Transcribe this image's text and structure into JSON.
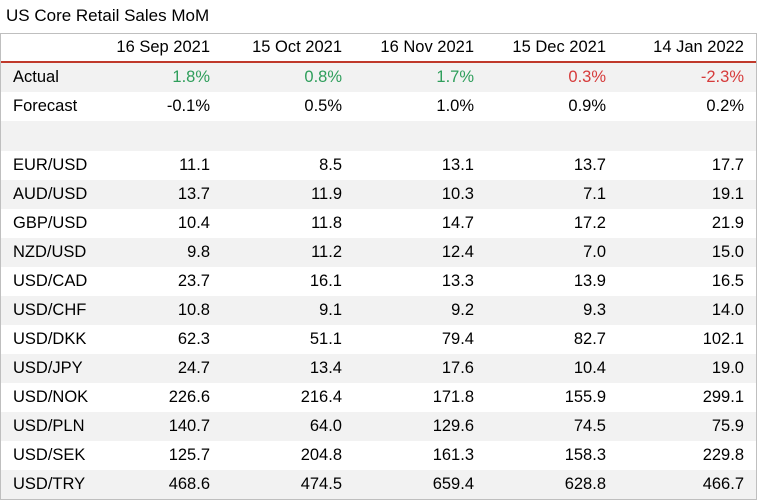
{
  "title": "US Core Retail Sales MoM",
  "colors": {
    "positive": "#2e9e5b",
    "negative": "#d63b3b",
    "header_rule": "#c0392b",
    "shade": "#f2f2f2"
  },
  "header": [
    "16 Sep 2021",
    "15 Oct 2021",
    "16 Nov 2021",
    "15 Dec 2021",
    "14 Jan 2022"
  ],
  "actual": {
    "label": "Actual",
    "values": [
      "1.8%",
      "0.8%",
      "1.7%",
      "0.3%",
      "-2.3%"
    ]
  },
  "forecast": {
    "label": "Forecast",
    "values": [
      "-0.1%",
      "0.5%",
      "1.0%",
      "0.9%",
      "0.2%"
    ]
  },
  "pairs": [
    {
      "label": "EUR/USD",
      "values": [
        "11.1",
        "8.5",
        "13.1",
        "13.7",
        "17.7"
      ]
    },
    {
      "label": "AUD/USD",
      "values": [
        "13.7",
        "11.9",
        "10.3",
        "7.1",
        "19.1"
      ]
    },
    {
      "label": "GBP/USD",
      "values": [
        "10.4",
        "11.8",
        "14.7",
        "17.2",
        "21.9"
      ]
    },
    {
      "label": "NZD/USD",
      "values": [
        "9.8",
        "11.2",
        "12.4",
        "7.0",
        "15.0"
      ]
    },
    {
      "label": "USD/CAD",
      "values": [
        "23.7",
        "16.1",
        "13.3",
        "13.9",
        "16.5"
      ]
    },
    {
      "label": "USD/CHF",
      "values": [
        "10.8",
        "9.1",
        "9.2",
        "9.3",
        "14.0"
      ]
    },
    {
      "label": "USD/DKK",
      "values": [
        "62.3",
        "51.1",
        "79.4",
        "82.7",
        "102.1"
      ]
    },
    {
      "label": "USD/JPY",
      "values": [
        "24.7",
        "13.4",
        "17.6",
        "10.4",
        "19.0"
      ]
    },
    {
      "label": "USD/NOK",
      "values": [
        "226.6",
        "216.4",
        "171.8",
        "155.9",
        "299.1"
      ]
    },
    {
      "label": "USD/PLN",
      "values": [
        "140.7",
        "64.0",
        "129.6",
        "74.5",
        "75.9"
      ]
    },
    {
      "label": "USD/SEK",
      "values": [
        "125.7",
        "204.8",
        "161.3",
        "158.3",
        "229.8"
      ]
    },
    {
      "label": "USD/TRY",
      "values": [
        "468.6",
        "474.5",
        "659.4",
        "628.8",
        "466.7"
      ]
    }
  ]
}
